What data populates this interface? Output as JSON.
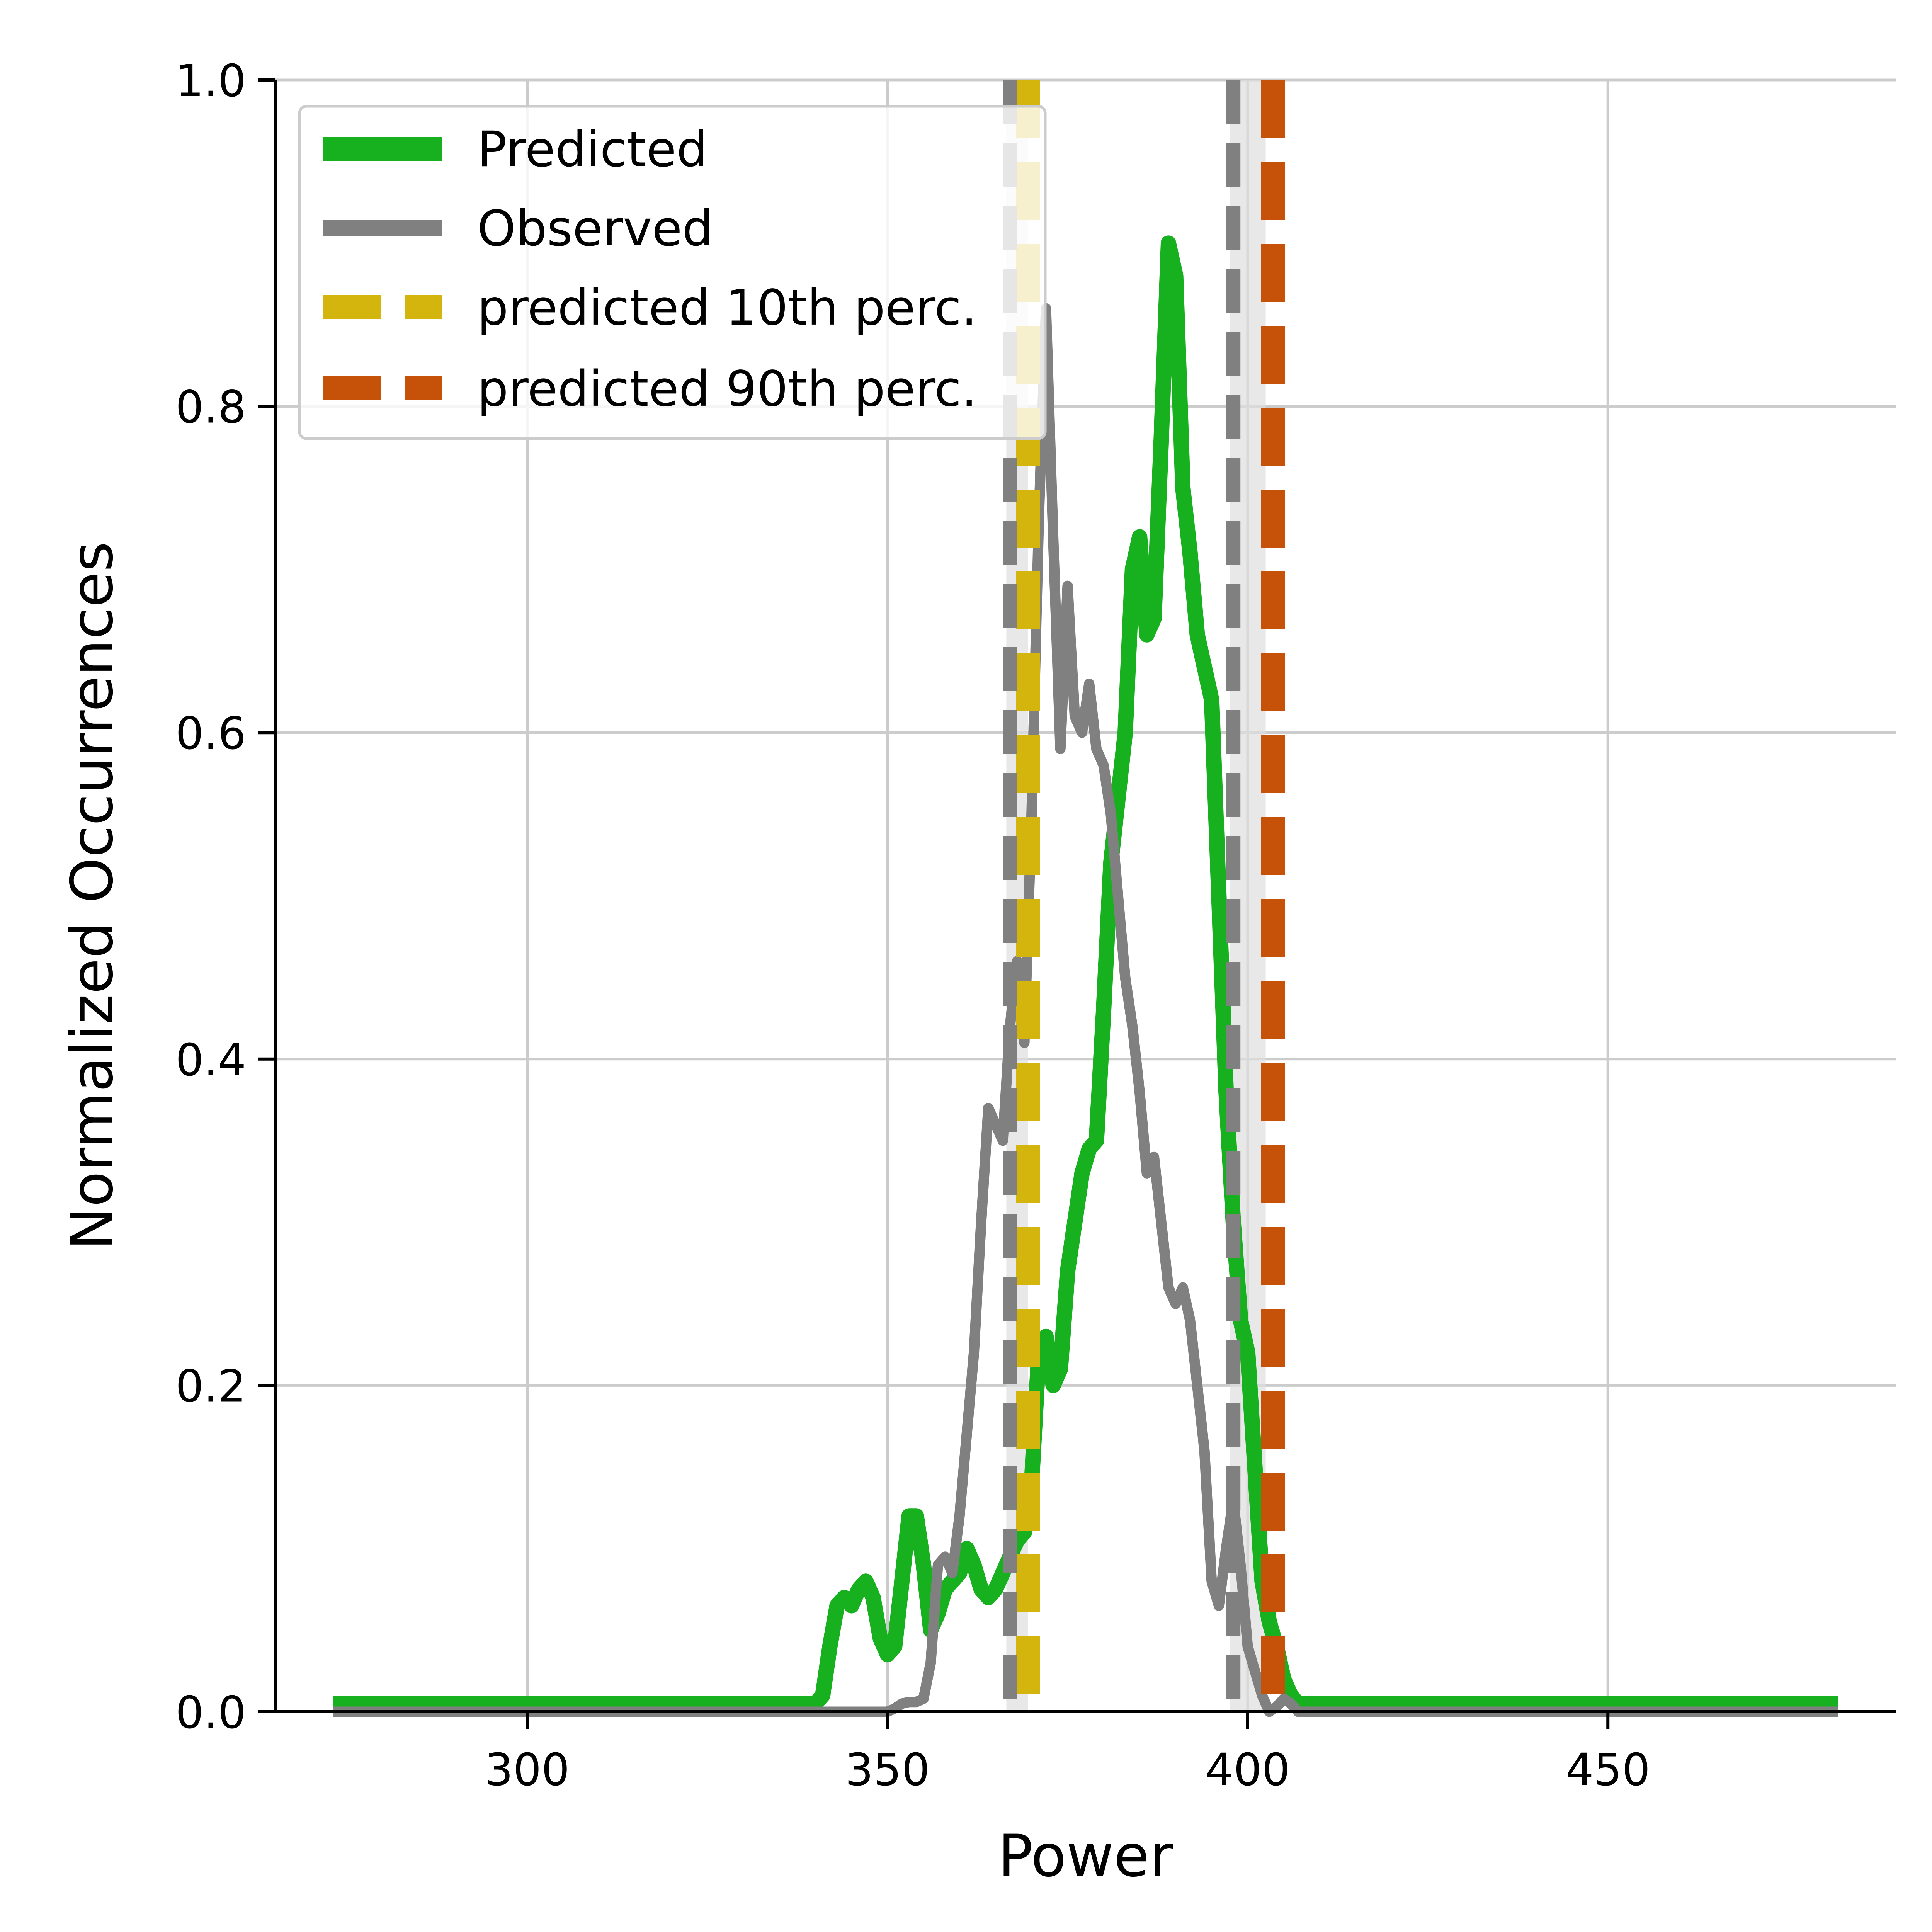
{
  "chart_data": {
    "type": "line",
    "title": "",
    "xlabel": "Power",
    "ylabel": "Normalized Occurrences",
    "xlim": [
      265,
      490
    ],
    "ylim": [
      0,
      1.0
    ],
    "x_ticks": [
      300,
      350,
      400,
      450
    ],
    "y_ticks": [
      0.0,
      0.2,
      0.4,
      0.6,
      0.8,
      1.0
    ],
    "x_tick_labels": [
      "300",
      "350",
      "400",
      "450"
    ],
    "y_tick_labels": [
      "0.0",
      "0.2",
      "0.4",
      "0.6",
      "0.8",
      "1.0"
    ],
    "grid": true,
    "legend_position": "top-left",
    "series": [
      {
        "name": "Predicted",
        "color": "#17b01f",
        "x": [
          273,
          340,
          341,
          342,
          343,
          344,
          345,
          346,
          347,
          348,
          349,
          350,
          351,
          352,
          353,
          354,
          355,
          356,
          357,
          358,
          359,
          360,
          361,
          362,
          363,
          364,
          365,
          366,
          367,
          368,
          369,
          370,
          371,
          372,
          373,
          374,
          375,
          376,
          377,
          378,
          379,
          380,
          381,
          382,
          383,
          384,
          385,
          386,
          387,
          388,
          389,
          390,
          391,
          392,
          393,
          394,
          395,
          396,
          397,
          398,
          399,
          400,
          401,
          402,
          403,
          404,
          405,
          406,
          407,
          408,
          409,
          410,
          411,
          412,
          413,
          414,
          415,
          416,
          417,
          418,
          419,
          420,
          482
        ],
        "values": [
          0.005,
          0.005,
          0.01,
          0.04,
          0.065,
          0.07,
          0.065,
          0.075,
          0.08,
          0.07,
          0.045,
          0.035,
          0.04,
          0.08,
          0.12,
          0.12,
          0.09,
          0.05,
          0.06,
          0.075,
          0.08,
          0.085,
          0.1,
          0.09,
          0.075,
          0.07,
          0.075,
          0.085,
          0.095,
          0.105,
          0.11,
          0.14,
          0.22,
          0.23,
          0.2,
          0.21,
          0.27,
          0.3,
          0.33,
          0.345,
          0.35,
          0.43,
          0.52,
          0.56,
          0.6,
          0.7,
          0.72,
          0.66,
          0.67,
          0.78,
          0.9,
          0.88,
          0.75,
          0.71,
          0.66,
          0.64,
          0.62,
          0.5,
          0.38,
          0.3,
          0.24,
          0.22,
          0.15,
          0.08,
          0.055,
          0.04,
          0.02,
          0.01,
          0.005,
          0.005,
          0.005,
          0.005,
          0.005,
          0.005,
          0.005,
          0.005,
          0.005,
          0.005,
          0.005,
          0.005,
          0.005,
          0.005,
          0.005
        ]
      },
      {
        "name": "Observed",
        "color": "#808080",
        "x": [
          273,
          350,
          351,
          352,
          353,
          354,
          355,
          356,
          357,
          358,
          359,
          360,
          361,
          362,
          363,
          364,
          365,
          366,
          367,
          368,
          369,
          370,
          371,
          372,
          373,
          374,
          375,
          376,
          377,
          378,
          379,
          380,
          381,
          382,
          383,
          384,
          385,
          386,
          387,
          388,
          389,
          390,
          391,
          392,
          393,
          394,
          395,
          396,
          397,
          398,
          399,
          400,
          401,
          402,
          403,
          404,
          405,
          406,
          407,
          408,
          409,
          410,
          411,
          412,
          413,
          414,
          415,
          416,
          417,
          418,
          419,
          420,
          482
        ],
        "values": [
          0.0,
          0.0,
          0.002,
          0.005,
          0.006,
          0.006,
          0.008,
          0.03,
          0.09,
          0.095,
          0.085,
          0.12,
          0.17,
          0.22,
          0.3,
          0.37,
          0.36,
          0.35,
          0.42,
          0.46,
          0.41,
          0.55,
          0.73,
          0.86,
          0.72,
          0.59,
          0.69,
          0.61,
          0.6,
          0.63,
          0.59,
          0.58,
          0.55,
          0.5,
          0.45,
          0.42,
          0.38,
          0.33,
          0.34,
          0.3,
          0.26,
          0.25,
          0.26,
          0.24,
          0.2,
          0.16,
          0.08,
          0.065,
          0.1,
          0.13,
          0.09,
          0.04,
          0.025,
          0.01,
          0.0,
          0.003,
          0.008,
          0.005,
          0.0,
          0.0,
          0.0,
          0.0,
          0.0,
          0.0,
          0.0,
          0.0,
          0.0,
          0.0,
          0.0,
          0.0,
          0.0,
          0.0,
          0.0
        ]
      }
    ],
    "vlines": [
      {
        "name": "predicted 10th perc.",
        "x": 369.5,
        "color": "#d4b50d",
        "style": "dashed",
        "in_legend": true
      },
      {
        "name": "predicted 90th perc.",
        "x": 403.5,
        "color": "#c65108",
        "style": "dashed",
        "in_legend": true
      },
      {
        "x": 367.0,
        "color": "#808080",
        "style": "dashed",
        "in_legend": false
      },
      {
        "x": 398.0,
        "color": "#808080",
        "style": "dashed",
        "in_legend": false
      }
    ],
    "bands": [
      {
        "x0": 366.5,
        "x1": 369.5,
        "color": "#dedede"
      },
      {
        "x0": 397.5,
        "x1": 402.5,
        "color": "#dedede"
      }
    ],
    "legend": [
      "Predicted",
      "Observed",
      "predicted 10th perc.",
      "predicted 90th perc."
    ]
  }
}
